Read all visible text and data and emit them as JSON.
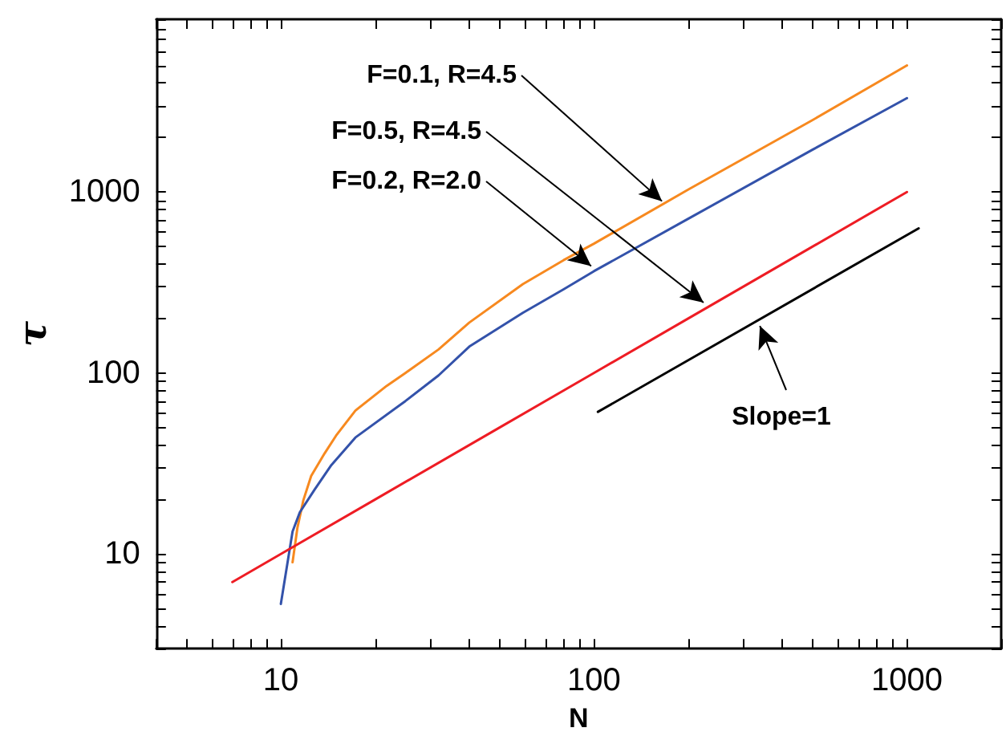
{
  "chart_data": {
    "type": "line",
    "xlabel": "N",
    "ylabel": "τ",
    "log": "xy",
    "grid": false,
    "marker": "none",
    "line_style": "solid",
    "xlim": [
      4,
      2000
    ],
    "ylim": [
      3,
      9000
    ],
    "xticks": [
      {
        "value": 4,
        "label": null
      },
      {
        "value": 5,
        "label": null
      },
      {
        "value": 6,
        "label": null
      },
      {
        "value": 7,
        "label": null
      },
      {
        "value": 8,
        "label": null
      },
      {
        "value": 9,
        "label": null
      },
      10,
      {
        "value": 20,
        "label": null
      },
      {
        "value": 30,
        "label": null
      },
      {
        "value": 40,
        "label": null
      },
      {
        "value": 50,
        "label": null
      },
      {
        "value": 60,
        "label": null
      },
      {
        "value": 70,
        "label": null
      },
      {
        "value": 80,
        "label": null
      },
      {
        "value": 90,
        "label": null
      },
      100,
      {
        "value": 200,
        "label": null
      },
      {
        "value": 300,
        "label": null
      },
      {
        "value": 400,
        "label": null
      },
      {
        "value": 500,
        "label": null
      },
      {
        "value": 600,
        "label": null
      },
      {
        "value": 700,
        "label": null
      },
      {
        "value": 800,
        "label": null
      },
      {
        "value": 900,
        "label": null
      },
      1000,
      {
        "value": 2000,
        "label": null
      }
    ],
    "yticks": [
      {
        "value": 3,
        "label": null
      },
      {
        "value": 4,
        "label": null
      },
      {
        "value": 5,
        "label": null
      },
      {
        "value": 6,
        "label": null
      },
      {
        "value": 7,
        "label": null
      },
      {
        "value": 8,
        "label": null
      },
      {
        "value": 9,
        "label": null
      },
      10,
      {
        "value": 20,
        "label": null
      },
      {
        "value": 30,
        "label": null
      },
      {
        "value": 40,
        "label": null
      },
      {
        "value": 50,
        "label": null
      },
      {
        "value": 60,
        "label": null
      },
      {
        "value": 70,
        "label": null
      },
      {
        "value": 80,
        "label": null
      },
      {
        "value": 90,
        "label": null
      },
      100,
      {
        "value": 200,
        "label": null
      },
      {
        "value": 300,
        "label": null
      },
      {
        "value": 400,
        "label": null
      },
      {
        "value": 500,
        "label": null
      },
      {
        "value": 600,
        "label": null
      },
      {
        "value": 700,
        "label": null
      },
      {
        "value": 800,
        "label": null
      },
      {
        "value": 900,
        "label": null
      },
      1000,
      {
        "value": 2000,
        "label": null
      },
      {
        "value": 3000,
        "label": null
      },
      {
        "value": 4000,
        "label": null
      },
      {
        "value": 5000,
        "label": null
      },
      {
        "value": 6000,
        "label": null
      },
      {
        "value": 7000,
        "label": null
      },
      {
        "value": 8000,
        "label": null
      },
      {
        "value": 9000,
        "label": null
      }
    ],
    "series": [
      {
        "color": "#f7891f",
        "x": [
          10.9,
          11.3,
          11.8,
          12.5,
          13.8,
          15,
          17.3,
          21.8,
          25,
          31.9,
          40,
          59.3,
          80,
          100,
          200,
          500,
          1000
        ],
        "values": [
          9,
          14,
          19.8,
          27,
          36,
          45,
          62,
          85,
          100,
          135,
          190,
          310,
          420,
          518,
          1030,
          2500,
          5000
        ]
      },
      {
        "color": "#3352aa",
        "x": [
          10,
          10.9,
          11.5,
          12.8,
          14.5,
          17.3,
          25,
          31.9,
          40,
          59.3,
          80,
          100,
          200,
          500,
          1000
        ],
        "values": [
          5.3,
          13.3,
          17,
          22.6,
          31,
          44,
          70,
          97,
          140,
          215,
          290,
          365,
          711,
          1715,
          3300
        ]
      },
      {
        "color": "#ee1c24",
        "x": [
          7,
          10,
          20,
          50,
          100,
          200,
          500,
          1000
        ],
        "values": [
          7,
          10,
          20,
          50,
          100,
          200,
          500,
          1000
        ]
      },
      {
        "color": "#000000",
        "x": [
          103,
          1090
        ],
        "values": [
          61,
          630
        ]
      }
    ],
    "annotations": [
      {
        "text": "F=0.1, R=4.5",
        "x": 165,
        "y": 890
      },
      {
        "text": "F=0.5, R=4.5",
        "x": 224,
        "y": 245
      },
      {
        "text": "F=0.2, R=2.0",
        "x": 98,
        "y": 390
      },
      {
        "text": "Slope=1",
        "x": 339,
        "y": 182
      }
    ]
  }
}
